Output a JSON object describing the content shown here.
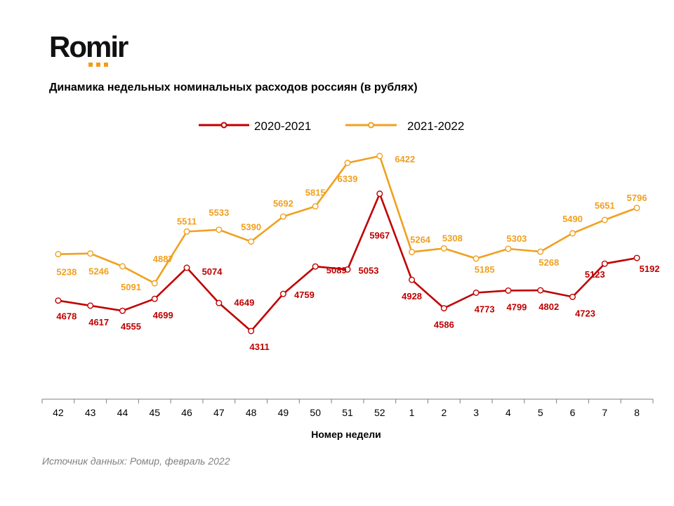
{
  "logo": "Romir",
  "source": "Источник данных: Ромир, февраль 2022",
  "chart_data": {
    "type": "line",
    "title": "Динамика недельных номинальных расходов россиян (в рублях)",
    "xlabel": "Номер недели",
    "ylabel": "",
    "categories": [
      "42",
      "43",
      "44",
      "45",
      "46",
      "47",
      "48",
      "49",
      "50",
      "51",
      "52",
      "1",
      "2",
      "3",
      "4",
      "5",
      "6",
      "7",
      "8"
    ],
    "legend_position": "top",
    "series": [
      {
        "name": "2020-2021",
        "color": "#c00000",
        "values": [
          4678,
          4617,
          4555,
          4699,
          5074,
          4649,
          4311,
          4759,
          5089,
          5053,
          5967,
          4928,
          4586,
          4773,
          4799,
          4802,
          4723,
          5123,
          5192
        ]
      },
      {
        "name": "2021-2022",
        "color": "#f0a020",
        "values": [
          5238,
          5246,
          5091,
          4887,
          5511,
          5533,
          5390,
          5692,
          5815,
          6339,
          6422,
          5264,
          5308,
          5185,
          5303,
          5268,
          5490,
          5651,
          5796
        ]
      }
    ]
  }
}
